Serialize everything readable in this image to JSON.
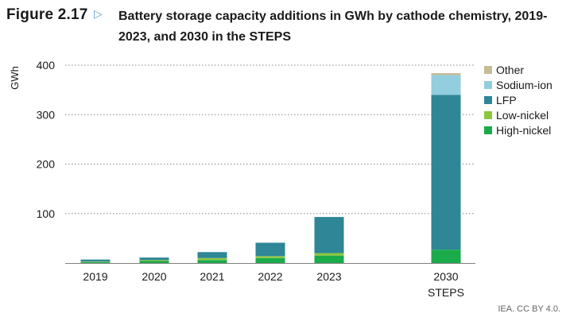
{
  "figure": {
    "label": "Figure 2.17",
    "arrow_icon": "triangle-right-icon",
    "title": "Battery storage capacity additions in GWh by cathode chemistry, 2019-2023, and 2030 in the STEPS"
  },
  "footer": {
    "credit": "IEA. CC BY 4.0."
  },
  "chart_data": {
    "type": "bar",
    "stacked": true,
    "title": "Battery storage capacity additions in GWh by cathode chemistry, 2019-2023, and 2030 in the STEPS",
    "xlabel": "",
    "ylabel": "GWh",
    "ylim": [
      0,
      400
    ],
    "yticks": [
      100,
      200,
      300,
      400
    ],
    "grid": true,
    "legend_position": "right",
    "categories": [
      {
        "label": "2019",
        "sublabel": ""
      },
      {
        "label": "2020",
        "sublabel": ""
      },
      {
        "label": "2021",
        "sublabel": ""
      },
      {
        "label": "2022",
        "sublabel": ""
      },
      {
        "label": "2023",
        "sublabel": ""
      },
      {
        "label": "2030",
        "sublabel": "STEPS"
      }
    ],
    "series": [
      {
        "name": "High-nickel",
        "color": "#1aab4b",
        "values": [
          2,
          4,
          6,
          10,
          15,
          27
        ]
      },
      {
        "name": "Low-nickel",
        "color": "#8cc63f",
        "values": [
          1,
          2,
          4,
          4,
          5,
          0
        ]
      },
      {
        "name": "LFP",
        "color": "#2e8697",
        "values": [
          4,
          5,
          12,
          27,
          73,
          313
        ]
      },
      {
        "name": "Sodium-ion",
        "color": "#92cedd",
        "values": [
          0,
          0,
          0,
          0,
          0,
          40
        ]
      },
      {
        "name": "Other",
        "color": "#c8bc96",
        "values": [
          0,
          0,
          0,
          0,
          0,
          4
        ]
      }
    ]
  }
}
